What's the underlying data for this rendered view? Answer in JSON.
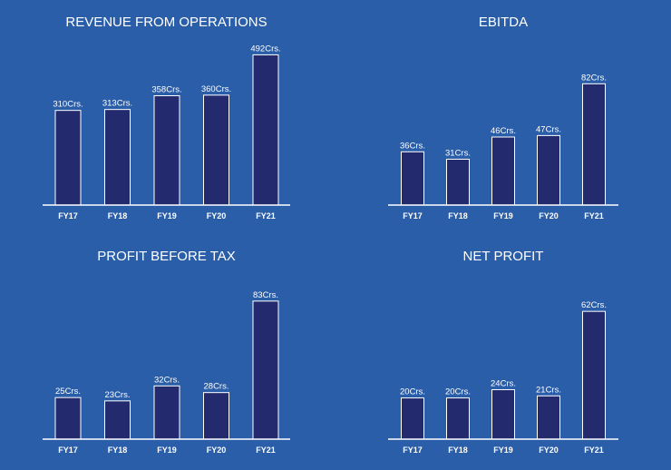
{
  "chart_data": [
    {
      "type": "bar",
      "title": "REVENUE FROM OPERATIONS",
      "categories": [
        "FY17",
        "FY18",
        "FY19",
        "FY20",
        "FY21"
      ],
      "values": [
        310,
        313,
        358,
        360,
        492
      ],
      "value_labels": [
        "310Crs.",
        "313Crs.",
        "358Crs.",
        "360Crs.",
        "492Crs."
      ],
      "ylim": [
        0,
        520
      ],
      "grid": false
    },
    {
      "type": "bar",
      "title": "EBITDA",
      "categories": [
        "FY17",
        "FY18",
        "FY19",
        "FY20",
        "FY21"
      ],
      "values": [
        36,
        31,
        46,
        47,
        82
      ],
      "value_labels": [
        "36Crs.",
        "31Crs.",
        "46Crs.",
        "47Crs.",
        "82Crs."
      ],
      "ylim": [
        0,
        100
      ],
      "grid": false
    },
    {
      "type": "bar",
      "title": "PROFIT BEFORE TAX",
      "categories": [
        "FY17",
        "FY18",
        "FY19",
        "FY20",
        "FY21"
      ],
      "values": [
        25,
        23,
        32,
        28,
        83
      ],
      "value_labels": [
        "25Crs.",
        "23Crs.",
        "32Crs.",
        "28Crs.",
        "83Crs."
      ],
      "ylim": [
        0,
        90
      ],
      "grid": false
    },
    {
      "type": "bar",
      "title": "NET PROFIT",
      "categories": [
        "FY17",
        "FY18",
        "FY19",
        "FY20",
        "FY21"
      ],
      "values": [
        20,
        20,
        24,
        21,
        62
      ],
      "value_labels": [
        "20Crs.",
        "20Crs.",
        "24Crs.",
        "21Crs.",
        "62Crs."
      ],
      "ylim": [
        0,
        70
      ],
      "grid": false
    }
  ],
  "colors": {
    "background": "#2b5ea8",
    "bar_fill": "#232b6e",
    "bar_stroke": "#ffffff",
    "text": "#ffffff"
  }
}
